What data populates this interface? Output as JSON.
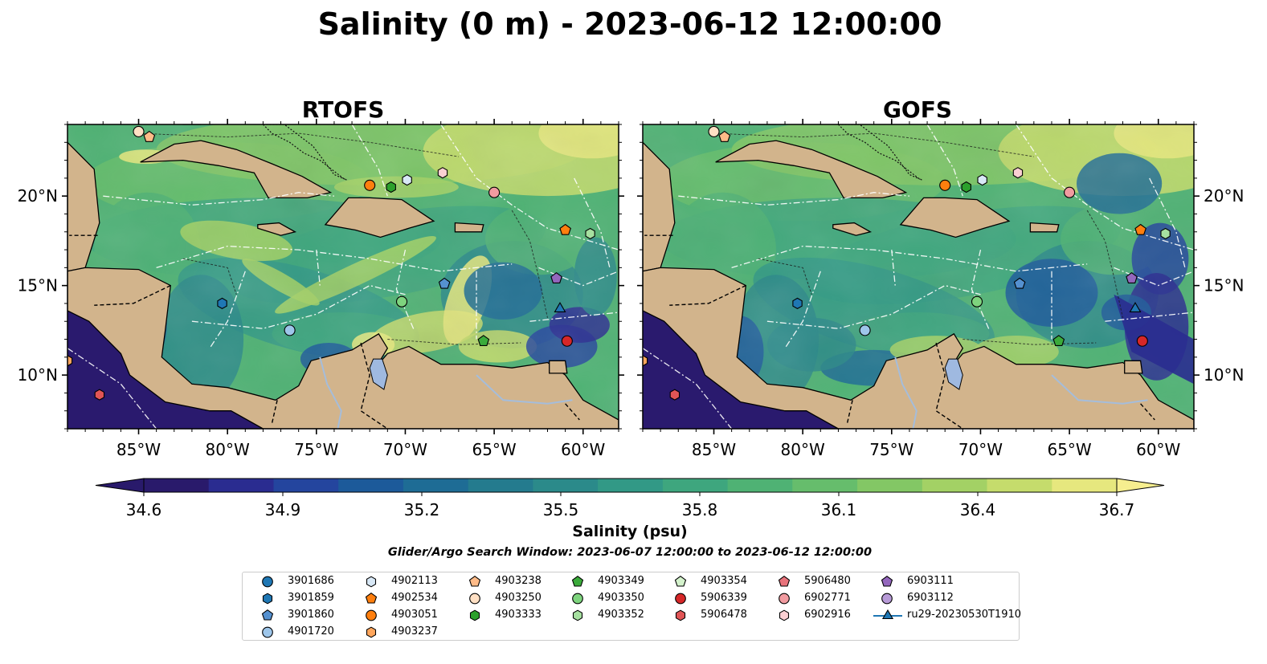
{
  "title": "Salinity (0 m) - 2023-06-12 12:00:00",
  "panels": [
    {
      "title": "RTOFS"
    },
    {
      "title": "GOFS"
    }
  ],
  "axes": {
    "lon_ticks": [
      "85°W",
      "80°W",
      "75°W",
      "70°W",
      "65°W",
      "60°W"
    ],
    "lon_values": [
      -85,
      -80,
      -75,
      -70,
      -65,
      -60
    ],
    "lat_ticks": [
      "20°N",
      "15°N",
      "10°N"
    ],
    "lat_values": [
      20,
      15,
      10
    ],
    "lon_range": [
      -89,
      -58
    ],
    "lat_range": [
      7,
      24
    ]
  },
  "colorbar": {
    "label": "Salinity (psu)",
    "ticks": [
      "34.6",
      "34.9",
      "35.2",
      "35.5",
      "35.8",
      "36.1",
      "36.4",
      "36.7"
    ],
    "range": [
      34.6,
      36.7
    ],
    "colors": [
      "#291a6b",
      "#2a2c90",
      "#24459e",
      "#1c5a9a",
      "#1e6c95",
      "#247b8e",
      "#2b8a8a",
      "#329986",
      "#3ea67e",
      "#4fb274",
      "#66bd6c",
      "#83c765",
      "#a3d165",
      "#c5dc6c",
      "#e6e77e"
    ]
  },
  "subtitle": "Glider/Argo Search Window: 2023-06-07 12:00:00 to 2023-06-12 12:00:00",
  "colors": {
    "land": "#d2b48c",
    "deep_pacific": "#2a1a6e",
    "lake": "#9fb9e0"
  },
  "legend": [
    {
      "id": "3901686",
      "marker": "circle",
      "color": "#1f77b4"
    },
    {
      "id": "3901859",
      "marker": "hexagon",
      "color": "#1f77b4"
    },
    {
      "id": "3901860",
      "marker": "pentagon",
      "color": "#5591d0"
    },
    {
      "id": "4901720",
      "marker": "circle",
      "color": "#9ec6ea"
    },
    {
      "id": "4902113",
      "marker": "hexagon",
      "color": "#d8e8f6"
    },
    {
      "id": "4902534",
      "marker": "pentagon",
      "color": "#ff7f0e"
    },
    {
      "id": "4903051",
      "marker": "circle",
      "color": "#ff7f0e"
    },
    {
      "id": "4903237",
      "marker": "hexagon",
      "color": "#ffa65c"
    },
    {
      "id": "4903238",
      "marker": "pentagon",
      "color": "#ffbb88"
    },
    {
      "id": "4903250",
      "marker": "circle",
      "color": "#ffe0c4"
    },
    {
      "id": "4903333",
      "marker": "hexagon",
      "color": "#2ca02c"
    },
    {
      "id": "4903349",
      "marker": "pentagon",
      "color": "#3bab3b"
    },
    {
      "id": "4903350",
      "marker": "circle",
      "color": "#7ed47e"
    },
    {
      "id": "4903352",
      "marker": "hexagon",
      "color": "#a6e0a0"
    },
    {
      "id": "4903354",
      "marker": "pentagon",
      "color": "#d4f2cc"
    },
    {
      "id": "5906339",
      "marker": "circle",
      "color": "#d62728"
    },
    {
      "id": "5906478",
      "marker": "hexagon",
      "color": "#e15556"
    },
    {
      "id": "5906480",
      "marker": "pentagon",
      "color": "#e8737b"
    },
    {
      "id": "6902771",
      "marker": "circle",
      "color": "#f19ba0"
    },
    {
      "id": "6902916",
      "marker": "hexagon",
      "color": "#fbcfd2"
    },
    {
      "id": "6903111",
      "marker": "pentagon",
      "color": "#9467bd"
    },
    {
      "id": "6903112",
      "marker": "circle",
      "color": "#b79ad7"
    },
    {
      "id": "ru29-20230530T1910",
      "marker": "triangle-line",
      "color": "#1f77b4"
    }
  ],
  "stations": [
    {
      "id": "4903250",
      "lon": -85.0,
      "lat": 23.6
    },
    {
      "id": "4903238",
      "lon": -84.4,
      "lat": 23.3
    },
    {
      "id": "4903051",
      "lon": -72.0,
      "lat": 20.6
    },
    {
      "id": "4903333",
      "lon": -70.8,
      "lat": 20.5
    },
    {
      "id": "4902113",
      "lon": -69.9,
      "lat": 20.9
    },
    {
      "id": "6902916",
      "lon": -67.9,
      "lat": 21.3
    },
    {
      "id": "6902771",
      "lon": -65.0,
      "lat": 20.2
    },
    {
      "id": "4902534",
      "lon": -61.0,
      "lat": 18.1
    },
    {
      "id": "4903352",
      "lon": -59.6,
      "lat": 17.9
    },
    {
      "id": "6903111",
      "lon": -61.5,
      "lat": 15.4
    },
    {
      "id": "3901860",
      "lon": -67.8,
      "lat": 15.1
    },
    {
      "id": "4903350",
      "lon": -70.2,
      "lat": 14.1
    },
    {
      "id": "3901859",
      "lon": -80.3,
      "lat": 14.0
    },
    {
      "id": "4901720",
      "lon": -76.5,
      "lat": 12.5
    },
    {
      "id": "4903349",
      "lon": -65.6,
      "lat": 11.9
    },
    {
      "id": "ru29-20230530T1910",
      "lon": -61.3,
      "lat": 13.7
    },
    {
      "id": "5906339",
      "lon": -60.9,
      "lat": 11.9
    },
    {
      "id": "4903237",
      "lon": -89.0,
      "lat": 10.8
    },
    {
      "id": "5906478",
      "lon": -87.2,
      "lat": 8.9
    }
  ]
}
